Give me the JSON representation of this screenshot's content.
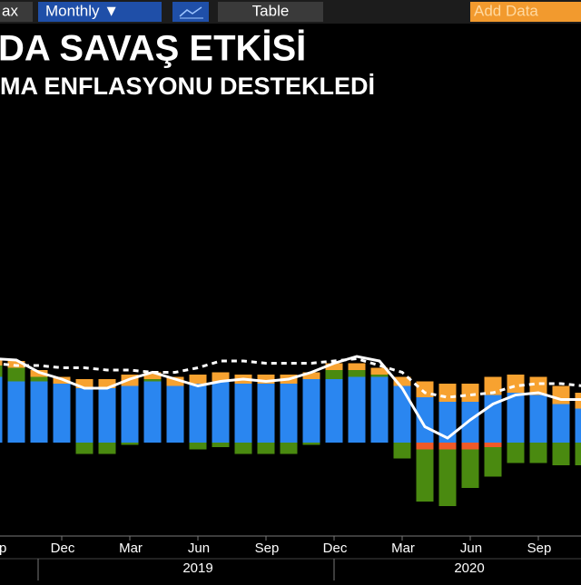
{
  "toolbar": {
    "range": "ax",
    "frequency": "Monthly ▼",
    "view": "Table",
    "add": "Add Data"
  },
  "chart_data": {
    "type": "bar",
    "title": "DA SAVAŞ ETKİSİ",
    "subtitle": "MA ENFLASYONU DESTEKLEDİ",
    "categories": [
      "Sep",
      null,
      null,
      "Dec",
      null,
      null,
      "Mar",
      null,
      null,
      "Jun",
      null,
      null,
      "Sep",
      null,
      null,
      "Dec",
      null,
      null,
      "Mar",
      null,
      null,
      "Jun",
      null,
      null,
      "Sep",
      null,
      null
    ],
    "years": [
      "2019",
      "2020"
    ],
    "ylim": [
      -4,
      8
    ],
    "series": [
      {
        "color": "#2a86f0",
        "values": [
          2.9,
          2.7,
          2.7,
          2.6,
          2.4,
          2.4,
          2.5,
          2.7,
          2.5,
          2.6,
          2.7,
          2.6,
          2.6,
          2.6,
          2.8,
          2.8,
          2.9,
          2.9,
          2.5,
          2.0,
          1.8,
          1.8,
          2.1,
          2.2,
          2.1,
          1.7,
          1.5
        ]
      },
      {
        "color": "#f05a28",
        "values": [
          0,
          0,
          0,
          0,
          0,
          0,
          0,
          0,
          0,
          0,
          0,
          0,
          0,
          0,
          0,
          0,
          0,
          0,
          0,
          -0.3,
          -0.3,
          -0.3,
          -0.2,
          0,
          0,
          0,
          0
        ]
      },
      {
        "color": "#4a8a10",
        "values": [
          0.5,
          0.6,
          0.2,
          0,
          -0.5,
          -0.5,
          -0.1,
          0.1,
          0,
          -0.3,
          -0.2,
          -0.5,
          -0.5,
          -0.5,
          -0.1,
          0.4,
          0.3,
          0.1,
          -0.7,
          -2.3,
          -2.5,
          -1.7,
          -1.3,
          -0.9,
          -0.9,
          -1.0,
          -1.0
        ]
      },
      {
        "color": "#f7a230",
        "values": [
          0.3,
          0.3,
          0.3,
          0.3,
          0.4,
          0.4,
          0.5,
          0.3,
          0.4,
          0.4,
          0.4,
          0.4,
          0.4,
          0.4,
          0.3,
          0.3,
          0.3,
          0.3,
          0.4,
          0.7,
          0.8,
          0.8,
          0.8,
          0.8,
          0.8,
          0.8,
          0.7
        ]
      },
      {
        "type": "line",
        "color": "#ffffff",
        "values": [
          3.7,
          3.64,
          3.1,
          2.8,
          2.4,
          2.4,
          2.8,
          3.1,
          2.8,
          2.5,
          2.7,
          2.8,
          2.7,
          2.8,
          3.1,
          3.5,
          3.8,
          3.6,
          2.4,
          0.7,
          0.2,
          1.0,
          1.7,
          2.1,
          2.2,
          1.9,
          1.9
        ]
      },
      {
        "type": "line",
        "dash": true,
        "color": "#ffffff",
        "values": [
          3.5,
          3.4,
          3.4,
          3.3,
          3.3,
          3.2,
          3.2,
          3.1,
          3.1,
          3.3,
          3.6,
          3.6,
          3.5,
          3.5,
          3.5,
          3.6,
          3.7,
          3.4,
          3.1,
          2.2,
          2.0,
          2.1,
          2.2,
          2.5,
          2.6,
          2.6,
          2.5
        ]
      }
    ]
  }
}
